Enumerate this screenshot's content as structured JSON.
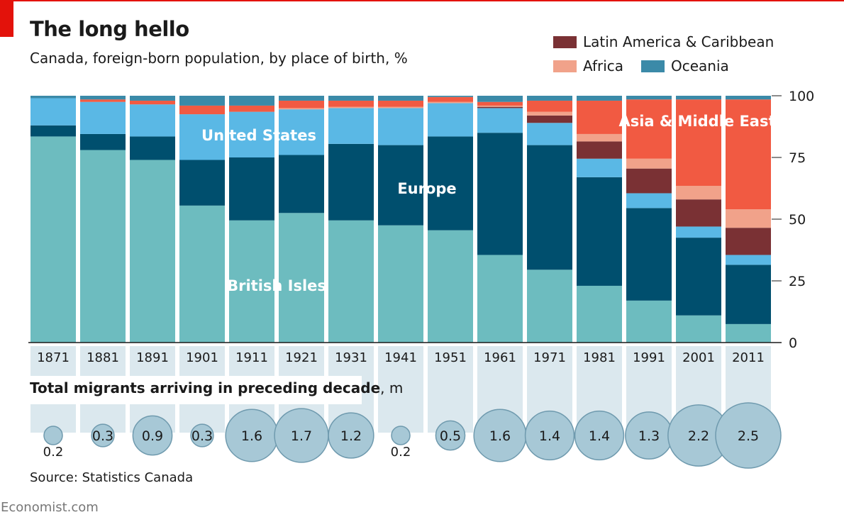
{
  "header": {
    "title": "The long hello",
    "subtitle": "Canada, foreign-born population, by place of birth, %"
  },
  "legend": {
    "items": [
      {
        "label": "Latin America & Caribbean",
        "color": "#7a3134"
      },
      {
        "label": "Africa",
        "color": "#f1a28a"
      },
      {
        "label": "Oceania",
        "color": "#3b8aa8"
      }
    ]
  },
  "bubbles": {
    "title_bold": "Total migrants arriving in preceding decade",
    "title_unit": ", m"
  },
  "footer": {
    "source": "Source: Statistics Canada",
    "brand": "Economist.com"
  },
  "colors": {
    "background": "#ffffff",
    "accent": "#e3120b",
    "bubble_fill": "#a7c8d6",
    "bubble_stroke": "#6f9aae",
    "bubble_column": "#dbe8ee"
  },
  "chart_data": {
    "type": "bar",
    "stacked": true,
    "categories": [
      "1871",
      "1881",
      "1891",
      "1901",
      "1911",
      "1921",
      "1931",
      "1941",
      "1951",
      "1961",
      "1971",
      "1981",
      "1991",
      "2001",
      "2011"
    ],
    "ylim": [
      0,
      100
    ],
    "yticks": [
      0,
      25,
      50,
      75,
      100
    ],
    "y_axis_side": "right",
    "series": [
      {
        "name": "British Isles",
        "color": "#6dbcbf",
        "values": [
          83.5,
          78,
          74,
          55.5,
          49.5,
          52.5,
          49.5,
          47.5,
          45.5,
          35.5,
          29.5,
          23,
          17,
          11,
          7.5
        ]
      },
      {
        "name": "Europe",
        "color": "#004f6e",
        "values": [
          4.5,
          6.5,
          9.5,
          18.5,
          25.5,
          23.5,
          31,
          32.5,
          38,
          49.5,
          50.5,
          44,
          37.5,
          31.5,
          24
        ]
      },
      {
        "name": "United States",
        "color": "#5ab8e5",
        "values": [
          11,
          13,
          13,
          18.5,
          18.5,
          18.5,
          14.5,
          15,
          13.5,
          10,
          9,
          7.5,
          6,
          4.5,
          4
        ]
      },
      {
        "name": "Latin America & Caribbean",
        "color": "#7a3134",
        "values": [
          0,
          0,
          0,
          0,
          0,
          0,
          0,
          0,
          0,
          0.5,
          3,
          7,
          10,
          11,
          11
        ]
      },
      {
        "name": "Africa",
        "color": "#f1a28a",
        "values": [
          0,
          0,
          0,
          0,
          0,
          0.5,
          0.5,
          0.5,
          0.5,
          0.5,
          1.5,
          3,
          4,
          5.5,
          7.5
        ]
      },
      {
        "name": "Asia & Middle East",
        "color": "#f15a42",
        "values": [
          0,
          1,
          1.5,
          3.5,
          2.5,
          3,
          2.5,
          2.5,
          2,
          1.5,
          4.5,
          13.5,
          24,
          35,
          44.5
        ]
      },
      {
        "name": "Oceania",
        "color": "#3b8aa8",
        "values": [
          1,
          1.5,
          2,
          4,
          4,
          2,
          2,
          2,
          0.5,
          2.5,
          2,
          2,
          1.5,
          1.5,
          1.5
        ]
      }
    ],
    "annotations": [
      "United States",
      "Europe",
      "British Isles",
      "Asia & Middle East"
    ],
    "migrants_m": [
      0.2,
      0.3,
      0.9,
      0.3,
      1.6,
      1.7,
      1.2,
      0.2,
      0.5,
      1.6,
      1.4,
      1.4,
      1.3,
      2.2,
      2.5
    ],
    "migrants_labels": [
      "0.2",
      "0.3",
      "0.9",
      "0.3",
      "1.6",
      "1.7",
      "1.2",
      "0.2",
      "0.5",
      "1.6",
      "1.4",
      "1.4",
      "1.3",
      "2.2",
      "2.5"
    ]
  }
}
